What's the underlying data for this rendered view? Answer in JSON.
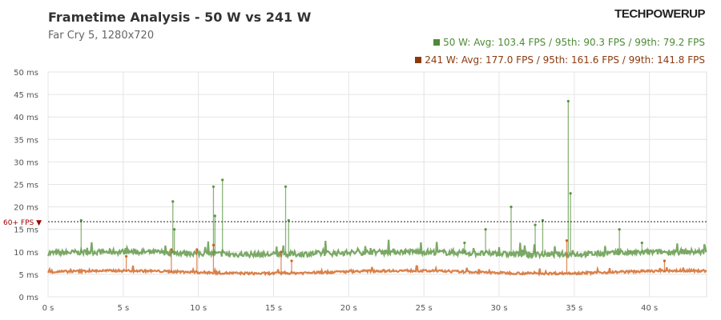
{
  "chart_data": {
    "type": "line",
    "title": "Frametime Analysis - 50 W vs 241 W",
    "subtitle": "Far Cry 5, 1280x720",
    "brand": "TECHPOWERUP",
    "xlabel": "",
    "ylabel": "",
    "xlim": [
      0,
      43.8
    ],
    "ylim": [
      0,
      50
    ],
    "xticks": [
      0,
      5,
      10,
      15,
      20,
      25,
      30,
      35,
      40
    ],
    "xtick_labels": [
      "0 s",
      "5 s",
      "10 s",
      "15 s",
      "20 s",
      "25 s",
      "30 s",
      "35 s",
      "40 s"
    ],
    "yticks": [
      0,
      5,
      10,
      15,
      20,
      25,
      30,
      35,
      40,
      45,
      50
    ],
    "ytick_labels": [
      "0 ms",
      "5 ms",
      "10 ms",
      "15 ms",
      "20 ms",
      "25 ms",
      "30 ms",
      "35 ms",
      "40 ms",
      "45 ms",
      "50 ms"
    ],
    "reference_line": {
      "value": 16.7,
      "label": "60+ FPS ▼",
      "color": "#a00000"
    },
    "grid": true,
    "legend_position": "top-right",
    "series": [
      {
        "name": "50 W",
        "legend": "50 W: Avg: 103.4 FPS / 95th: 90.3 FPS / 99th: 79.2 FPS",
        "color": "#5a9440",
        "legend_color": "#4e8a35",
        "baseline_ms": 9.7,
        "noise_ms": 1.2,
        "spikes": [
          [
            2.2,
            17
          ],
          [
            8.3,
            21.2
          ],
          [
            8.4,
            15
          ],
          [
            11.0,
            24.5
          ],
          [
            11.1,
            18
          ],
          [
            11.6,
            26
          ],
          [
            15.8,
            24.5
          ],
          [
            16.0,
            17
          ],
          [
            27.7,
            12
          ],
          [
            29.1,
            15
          ],
          [
            30.8,
            20
          ],
          [
            32.4,
            16
          ],
          [
            32.9,
            17
          ],
          [
            34.6,
            43.5
          ],
          [
            34.75,
            23
          ],
          [
            38.0,
            15
          ],
          [
            39.5,
            12
          ]
        ]
      },
      {
        "name": "241 W",
        "legend": "241 W: Avg: 177.0 FPS / 95th: 161.6 FPS / 99th: 141.8 FPS",
        "color": "#d2601a",
        "legend_color": "#8b3a0e",
        "baseline_ms": 5.5,
        "noise_ms": 0.5,
        "spikes": [
          [
            5.2,
            9
          ],
          [
            8.2,
            10.5
          ],
          [
            9.9,
            10.5
          ],
          [
            11.0,
            11.5
          ],
          [
            15.5,
            10
          ],
          [
            16.2,
            8
          ],
          [
            34.5,
            12.5
          ],
          [
            41.0,
            8
          ]
        ]
      }
    ]
  }
}
